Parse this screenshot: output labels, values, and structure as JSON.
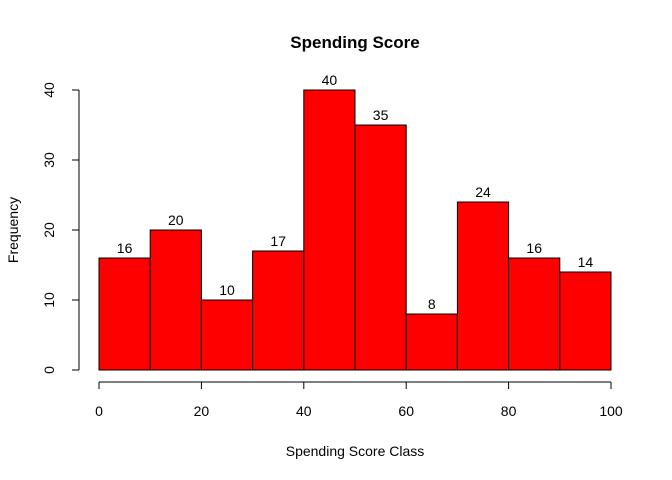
{
  "chart_data": {
    "type": "bar",
    "title": "Spending Score",
    "xlabel": "Spending Score Class",
    "ylabel": "Frequency",
    "bins": [
      {
        "from": 0,
        "to": 10,
        "value": 16
      },
      {
        "from": 10,
        "to": 20,
        "value": 20
      },
      {
        "from": 20,
        "to": 30,
        "value": 10
      },
      {
        "from": 30,
        "to": 40,
        "value": 17
      },
      {
        "from": 40,
        "to": 50,
        "value": 40
      },
      {
        "from": 50,
        "to": 60,
        "value": 35
      },
      {
        "from": 60,
        "to": 70,
        "value": 8
      },
      {
        "from": 70,
        "to": 80,
        "value": 24
      },
      {
        "from": 80,
        "to": 90,
        "value": 16
      },
      {
        "from": 90,
        "to": 100,
        "value": 14
      }
    ],
    "xlim": [
      0,
      100
    ],
    "ylim": [
      0,
      40
    ],
    "x_ticks": [
      "0",
      "20",
      "40",
      "60",
      "80",
      "100"
    ],
    "y_ticks": [
      "0",
      "10",
      "20",
      "30",
      "40"
    ],
    "bar_color": "#FF0000",
    "grid": false,
    "legend": "none"
  }
}
